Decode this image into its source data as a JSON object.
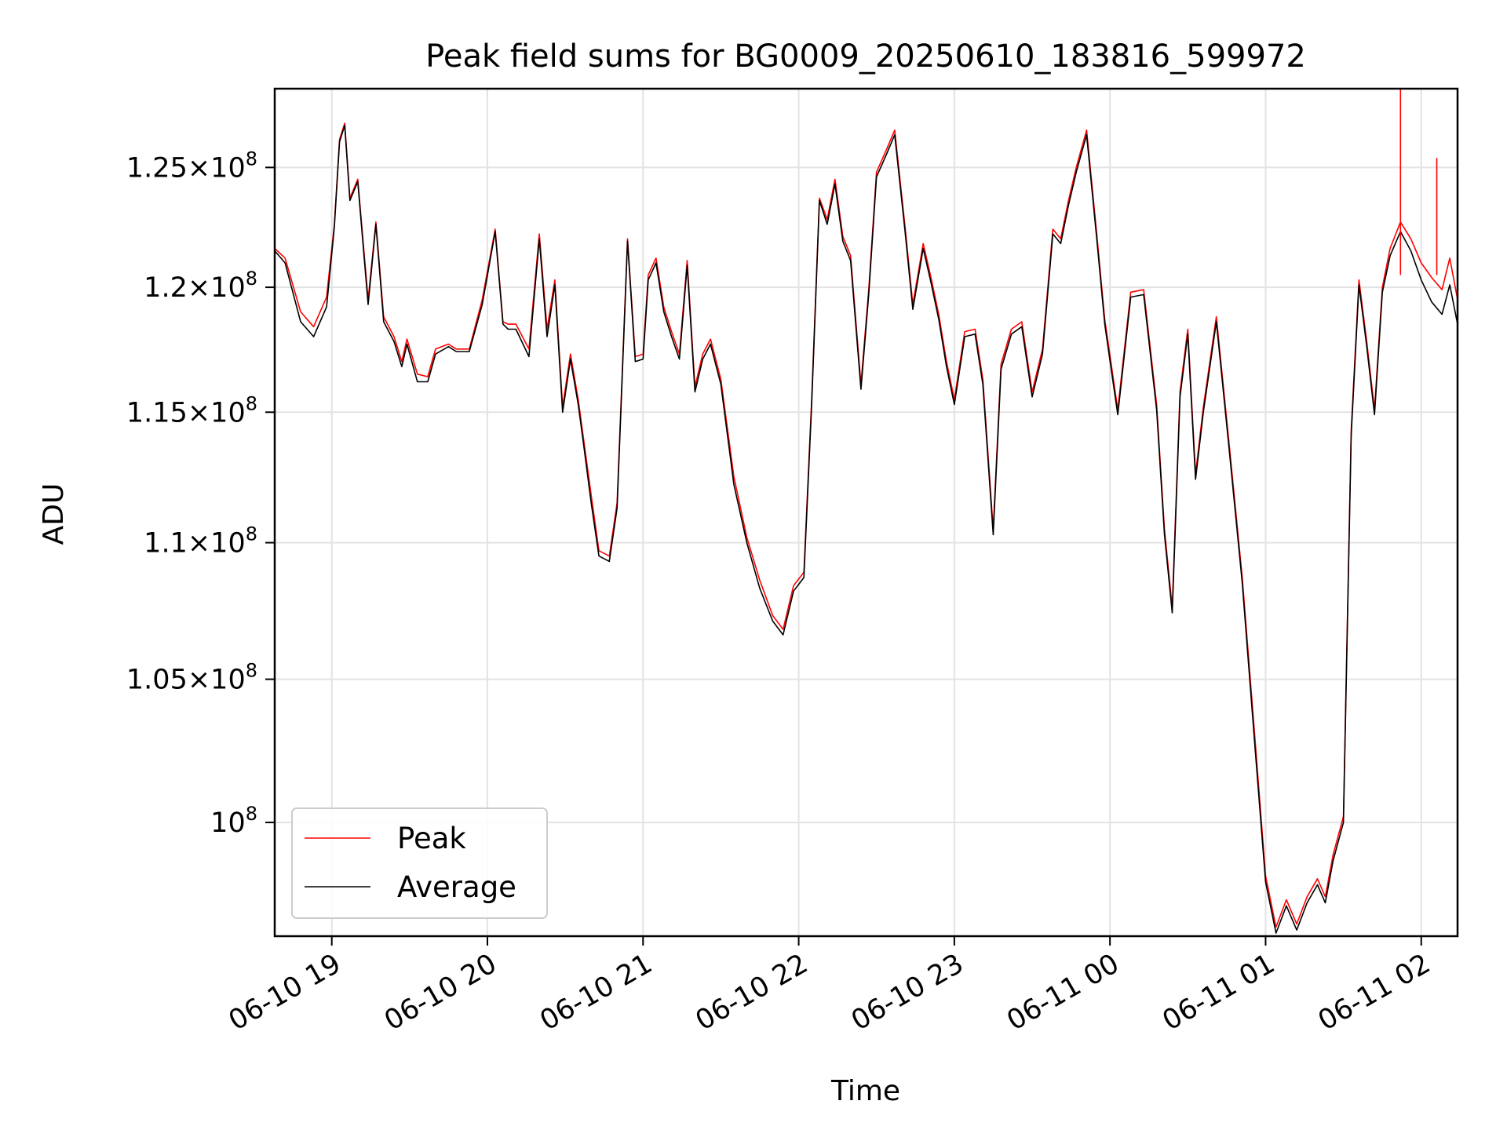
{
  "chart_data": {
    "type": "line",
    "title": "Peak field sums for BG0009_20250610_183816_599972",
    "xlabel": "Time",
    "ylabel": "ADU",
    "y_scale": "log",
    "xlim": [
      "2025-06-10 18:38",
      "2025-06-11 02:14"
    ],
    "ylim": [
      96200000,
      128400000
    ],
    "grid": true,
    "legend_position": "lower-left",
    "x_ticks": [
      {
        "t": "2025-06-10 19:00",
        "label": "06-10 19"
      },
      {
        "t": "2025-06-10 20:00",
        "label": "06-10 20"
      },
      {
        "t": "2025-06-10 21:00",
        "label": "06-10 21"
      },
      {
        "t": "2025-06-10 22:00",
        "label": "06-10 22"
      },
      {
        "t": "2025-06-10 23:00",
        "label": "06-10 23"
      },
      {
        "t": "2025-06-11 00:00",
        "label": "06-11 00"
      },
      {
        "t": "2025-06-11 01:00",
        "label": "06-11 01"
      },
      {
        "t": "2025-06-11 02:00",
        "label": "06-11 02"
      }
    ],
    "y_ticks": [
      {
        "value": 100000000,
        "mantissa": "",
        "exponent": "8"
      },
      {
        "value": 105000000,
        "mantissa": "1.05",
        "exponent": "8"
      },
      {
        "value": 110000000,
        "mantissa": "1.1",
        "exponent": "8"
      },
      {
        "value": 115000000,
        "mantissa": "1.15",
        "exponent": "8"
      },
      {
        "value": 120000000,
        "mantissa": "1.2",
        "exponent": "8"
      },
      {
        "value": 125000000,
        "mantissa": "1.25",
        "exponent": "8"
      }
    ],
    "x": [
      "2025-06-10 18:38",
      "2025-06-10 18:42",
      "2025-06-10 18:48",
      "2025-06-10 18:53",
      "2025-06-10 18:58",
      "2025-06-10 19:01",
      "2025-06-10 19:03",
      "2025-06-10 19:05",
      "2025-06-10 19:07",
      "2025-06-10 19:10",
      "2025-06-10 19:14",
      "2025-06-10 19:17",
      "2025-06-10 19:20",
      "2025-06-10 19:24",
      "2025-06-10 19:27",
      "2025-06-10 19:29",
      "2025-06-10 19:33",
      "2025-06-10 19:37",
      "2025-06-10 19:40",
      "2025-06-10 19:45",
      "2025-06-10 19:48",
      "2025-06-10 19:53",
      "2025-06-10 19:58",
      "2025-06-10 20:03",
      "2025-06-10 20:06",
      "2025-06-10 20:08",
      "2025-06-10 20:11",
      "2025-06-10 20:16",
      "2025-06-10 20:20",
      "2025-06-10 20:23",
      "2025-06-10 20:26",
      "2025-06-10 20:29",
      "2025-06-10 20:32",
      "2025-06-10 20:35",
      "2025-06-10 20:37",
      "2025-06-10 20:40",
      "2025-06-10 20:43",
      "2025-06-10 20:47",
      "2025-06-10 20:50",
      "2025-06-10 20:54",
      "2025-06-10 20:57",
      "2025-06-10 21:00",
      "2025-06-10 21:02",
      "2025-06-10 21:05",
      "2025-06-10 21:08",
      "2025-06-10 21:11",
      "2025-06-10 21:14",
      "2025-06-10 21:17",
      "2025-06-10 21:20",
      "2025-06-10 21:23",
      "2025-06-10 21:26",
      "2025-06-10 21:30",
      "2025-06-10 21:35",
      "2025-06-10 21:40",
      "2025-06-10 21:45",
      "2025-06-10 21:50",
      "2025-06-10 21:54",
      "2025-06-10 21:58",
      "2025-06-10 22:02",
      "2025-06-10 22:05",
      "2025-06-10 22:08",
      "2025-06-10 22:11",
      "2025-06-10 22:14",
      "2025-06-10 22:17",
      "2025-06-10 22:20",
      "2025-06-10 22:24",
      "2025-06-10 22:27",
      "2025-06-10 22:30",
      "2025-06-10 22:34",
      "2025-06-10 22:37",
      "2025-06-10 22:41",
      "2025-06-10 22:44",
      "2025-06-10 22:48",
      "2025-06-10 22:51",
      "2025-06-10 22:54",
      "2025-06-10 22:57",
      "2025-06-10 23:00",
      "2025-06-10 23:04",
      "2025-06-10 23:08",
      "2025-06-10 23:11",
      "2025-06-10 23:15",
      "2025-06-10 23:18",
      "2025-06-10 23:22",
      "2025-06-10 23:26",
      "2025-06-10 23:30",
      "2025-06-10 23:34",
      "2025-06-10 23:38",
      "2025-06-10 23:41",
      "2025-06-10 23:44",
      "2025-06-10 23:47",
      "2025-06-10 23:51",
      "2025-06-10 23:55",
      "2025-06-10 23:58",
      "2025-06-11 00:03",
      "2025-06-11 00:08",
      "2025-06-11 00:13",
      "2025-06-11 00:18",
      "2025-06-11 00:21",
      "2025-06-11 00:24",
      "2025-06-11 00:27",
      "2025-06-11 00:30",
      "2025-06-11 00:33",
      "2025-06-11 00:36",
      "2025-06-11 00:41",
      "2025-06-11 00:46",
      "2025-06-11 00:51",
      "2025-06-11 00:56",
      "2025-06-11 01:00",
      "2025-06-11 01:04",
      "2025-06-11 01:08",
      "2025-06-11 01:12",
      "2025-06-11 01:16",
      "2025-06-11 01:20",
      "2025-06-11 01:23",
      "2025-06-11 01:26",
      "2025-06-11 01:30",
      "2025-06-11 01:33",
      "2025-06-11 01:36",
      "2025-06-11 01:39",
      "2025-06-11 01:42",
      "2025-06-11 01:45",
      "2025-06-11 01:48",
      "2025-06-11 01:52",
      "2025-06-11 01:56",
      "2025-06-11 02:00",
      "2025-06-11 02:04",
      "2025-06-11 02:08",
      "2025-06-11 02:11",
      "2025-06-11 02:14"
    ],
    "series": [
      {
        "name": "Peak",
        "color": "#ff0000",
        "values": [
          121600000,
          121200000,
          119000000,
          118400000,
          119600000,
          122600000,
          126200000,
          126900000,
          123700000,
          124500000,
          119500000,
          122700000,
          118800000,
          118000000,
          117000000,
          117900000,
          116500000,
          116400000,
          117500000,
          117700000,
          117500000,
          117500000,
          119500000,
          122400000,
          118600000,
          118500000,
          118500000,
          117500000,
          122200000,
          118300000,
          120300000,
          115200000,
          117300000,
          115500000,
          114000000,
          111800000,
          109700000,
          109500000,
          111500000,
          122000000,
          117200000,
          117300000,
          120500000,
          121200000,
          119200000,
          118200000,
          117300000,
          121100000,
          116000000,
          117300000,
          117900000,
          116300000,
          112500000,
          110200000,
          108600000,
          107300000,
          106800000,
          108400000,
          108900000,
          115500000,
          123700000,
          122800000,
          124500000,
          122100000,
          121300000,
          116100000,
          119900000,
          124800000,
          125800000,
          126600000,
          122500000,
          119300000,
          121800000,
          120400000,
          118900000,
          117000000,
          115500000,
          118200000,
          118300000,
          116300000,
          110500000,
          116900000,
          118300000,
          118600000,
          115800000,
          117500000,
          122400000,
          122000000,
          123600000,
          125000000,
          126600000,
          122100000,
          118700000,
          115100000,
          119800000,
          119900000,
          115300000,
          110500000,
          107600000,
          115800000,
          118300000,
          112600000,
          115200000,
          118800000,
          113700000,
          108700000,
          102800000,
          98200000,
          96500000,
          97400000,
          96600000,
          97500000,
          98100000,
          97500000,
          98900000,
          100200000,
          114300000,
          120300000,
          117800000,
          115100000,
          120000000,
          121600000,
          122700000,
          122000000,
          121000000,
          120400000,
          119900000,
          121200000,
          119500000
        ]
      },
      {
        "name": "Average",
        "color": "#000000",
        "values": [
          121500000,
          121000000,
          118600000,
          118000000,
          119200000,
          122500000,
          126100000,
          126800000,
          123600000,
          124400000,
          119300000,
          122600000,
          118600000,
          117800000,
          116800000,
          117700000,
          116200000,
          116200000,
          117300000,
          117600000,
          117400000,
          117400000,
          119300000,
          122300000,
          118500000,
          118300000,
          118300000,
          117200000,
          122000000,
          118000000,
          120100000,
          115000000,
          117100000,
          115300000,
          113800000,
          111500000,
          109500000,
          109300000,
          111300000,
          121900000,
          117000000,
          117100000,
          120300000,
          121000000,
          119000000,
          118000000,
          117100000,
          120900000,
          115800000,
          117100000,
          117700000,
          116100000,
          112200000,
          110000000,
          108300000,
          107100000,
          106600000,
          108200000,
          108700000,
          115300000,
          123600000,
          122600000,
          124300000,
          121900000,
          121100000,
          115900000,
          119700000,
          124600000,
          125600000,
          126400000,
          122300000,
          119100000,
          121600000,
          120200000,
          118700000,
          116800000,
          115300000,
          118000000,
          118100000,
          116100000,
          110300000,
          116700000,
          118100000,
          118400000,
          115600000,
          117300000,
          122200000,
          121800000,
          123400000,
          124800000,
          126400000,
          121900000,
          118500000,
          114900000,
          119600000,
          119700000,
          115100000,
          110300000,
          107400000,
          115600000,
          118100000,
          112400000,
          115000000,
          118600000,
          113500000,
          108500000,
          102500000,
          98000000,
          96300000,
          97200000,
          96400000,
          97300000,
          97900000,
          97300000,
          98700000,
          100000000,
          114100000,
          120100000,
          117600000,
          114900000,
          119800000,
          121300000,
          122300000,
          121500000,
          120300000,
          119400000,
          118900000,
          120100000,
          118500000
        ]
      }
    ],
    "annotations": [
      {
        "type": "spike",
        "series": "Peak",
        "t": "2025-06-11 01:52",
        "value": 128400000
      },
      {
        "type": "spike",
        "series": "Peak",
        "t": "2025-06-11 02:06",
        "value": 125400000
      }
    ]
  }
}
